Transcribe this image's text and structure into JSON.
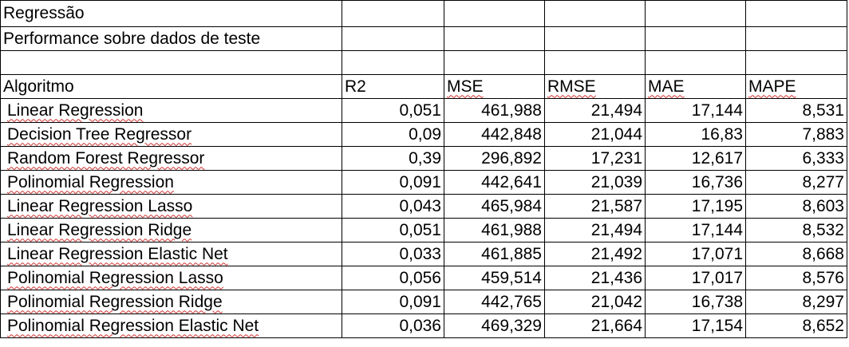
{
  "title": "Regressão",
  "subtitle": "Performance sobre dados de teste",
  "columns": [
    "Algoritmo",
    "R2",
    "MSE",
    "RMSE",
    "MAE",
    "MAPE"
  ],
  "rows": [
    {
      "name": "Linear Regression",
      "r2": "0,051",
      "mse": "461,988",
      "rmse": "21,494",
      "mae": "17,144",
      "mape": "8,531"
    },
    {
      "name": "Decision Tree Regressor",
      "r2": "0,09",
      "mse": "442,848",
      "rmse": "21,044",
      "mae": "16,83",
      "mape": "7,883"
    },
    {
      "name": "Random Forest Regressor",
      "r2": "0,39",
      "mse": "296,892",
      "rmse": "17,231",
      "mae": "12,617",
      "mape": "6,333"
    },
    {
      "name": "Polinomial Regression",
      "r2": "0,091",
      "mse": "442,641",
      "rmse": "21,039",
      "mae": "16,736",
      "mape": "8,277"
    },
    {
      "name": "Linear Regression Lasso",
      "r2": "0,043",
      "mse": "465,984",
      "rmse": "21,587",
      "mae": "17,195",
      "mape": "8,603"
    },
    {
      "name": "Linear Regression Ridge",
      "r2": "0,051",
      "mse": "461,988",
      "rmse": "21,494",
      "mae": "17,144",
      "mape": "8,532"
    },
    {
      "name": "Linear Regression Elastic Net",
      "r2": "0,033",
      "mse": "461,885",
      "rmse": "21,492",
      "mae": "17,071",
      "mape": "8,668"
    },
    {
      "name": "Polinomial Regression Lasso",
      "r2": "0,056",
      "mse": "459,514",
      "rmse": "21,436",
      "mae": "17,017",
      "mape": "8,576"
    },
    {
      "name": "Polinomial Regression Ridge",
      "r2": "0,091",
      "mse": "442,765",
      "rmse": "21,042",
      "mae": "16,738",
      "mape": "8,297"
    },
    {
      "name": "Polinomial Regression Elastic Net",
      "r2": "0,036",
      "mse": "469,329",
      "rmse": "21,664",
      "mae": "17,154",
      "mape": "8,652"
    }
  ]
}
